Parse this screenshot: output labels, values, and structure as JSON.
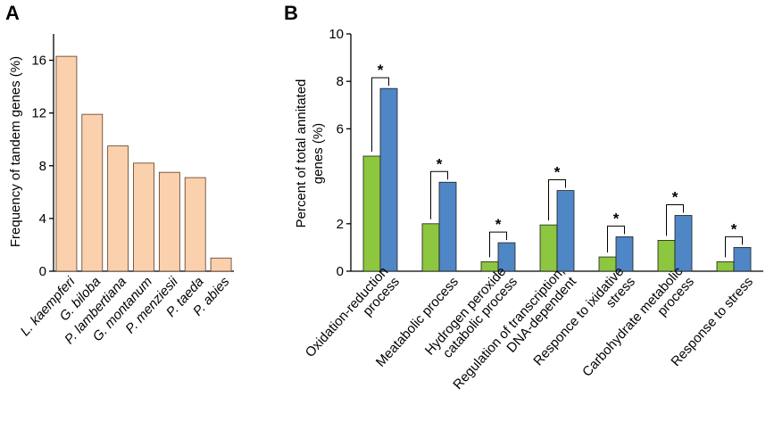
{
  "chart_data": [
    {
      "type": "bar",
      "panel_label": "A",
      "ylabel": "Frequency of tandem genes (%)",
      "ylim": [
        0,
        18
      ],
      "yticks": [
        0,
        4,
        8,
        12,
        16
      ],
      "categories": [
        "L. kaempferi",
        "G. biloba",
        "P. lambertiana",
        "G. montanum",
        "P. menziesii",
        "P. taeda",
        "P. abies"
      ],
      "values": [
        16.3,
        11.9,
        9.5,
        8.2,
        7.5,
        7.1,
        1.0
      ],
      "colors": {
        "bar": "#fbd0ac"
      }
    },
    {
      "type": "bar",
      "panel_label": "B",
      "ylabel_lines": [
        "Percent of total annitated",
        "genes (%)"
      ],
      "ylim": [
        0,
        10
      ],
      "yticks": [
        0,
        2,
        6,
        8,
        10
      ],
      "categories": [
        [
          "Oxidation-reduction",
          "process"
        ],
        [
          "Meatabolic process"
        ],
        [
          "Hydrogen peroxide",
          "catabolic process"
        ],
        [
          "Regulation of transcription,",
          "DNA-dependent"
        ],
        [
          "Responce to ixidative",
          "stress"
        ],
        [
          "Carbohydrate metabolic",
          "process"
        ],
        [
          "Response to stress"
        ]
      ],
      "series": [
        {
          "values": [
            4.85,
            2.0,
            0.4,
            1.95,
            0.6,
            1.3,
            0.4
          ],
          "color": "#8dc63f"
        },
        {
          "values": [
            7.7,
            3.75,
            1.2,
            3.4,
            1.45,
            2.35,
            1.0
          ],
          "color": "#4f86c6"
        }
      ],
      "significance_marker": "*"
    }
  ]
}
